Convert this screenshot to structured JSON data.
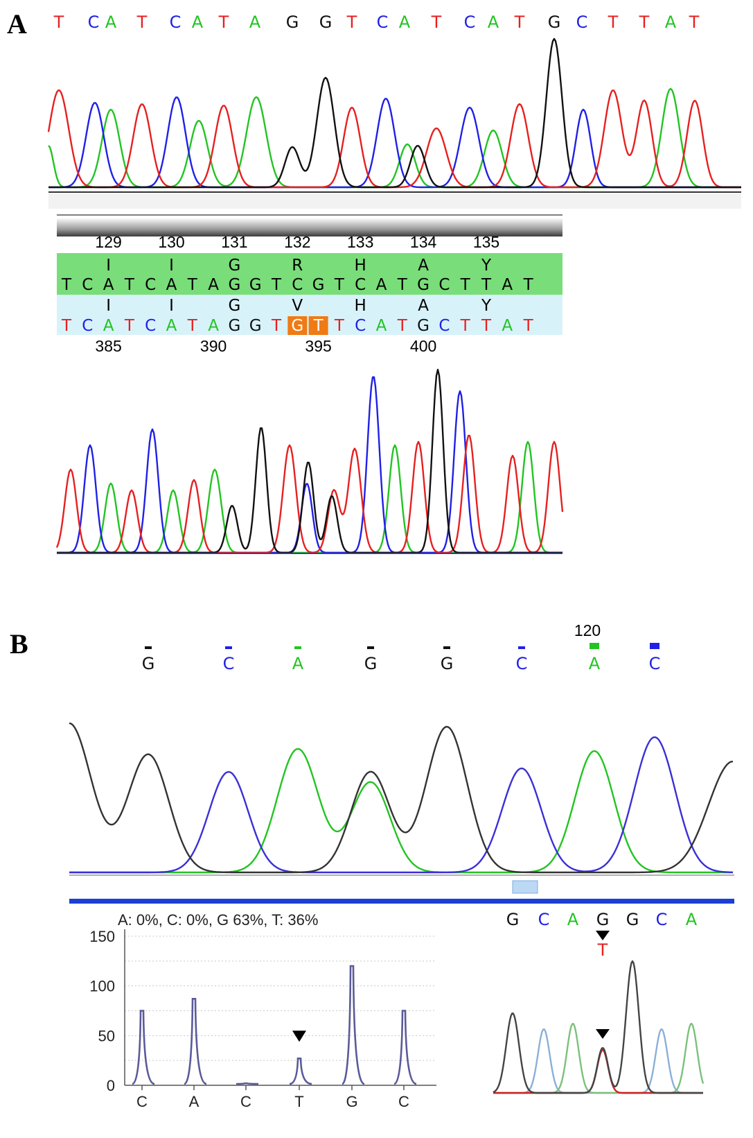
{
  "colors": {
    "A": "#22c422",
    "C": "#2020e6",
    "G": "#111111",
    "T": "#e62020",
    "highlight": "#f07a14",
    "green_band": "#79dd79",
    "blue_band": "#d8f2fa"
  },
  "panelA": {
    "label": "A",
    "top_calls": [
      "T",
      "C",
      "A",
      "T",
      "C",
      "A",
      "T",
      "A",
      "G",
      "G",
      "T",
      "C",
      "A",
      "T",
      "C",
      "A",
      "T",
      "G",
      "C",
      "T",
      "T",
      "A",
      "T"
    ],
    "codon_numbers": [
      "129",
      "130",
      "131",
      "132",
      "133",
      "134",
      "135"
    ],
    "ref_aa": [
      "I",
      "I",
      "G",
      "R",
      "H",
      "A",
      "Y"
    ],
    "ref_seq": [
      "T",
      "C",
      "A",
      "T",
      "C",
      "A",
      "T",
      "A",
      "G",
      "G",
      "T",
      "C",
      "G",
      "T",
      "C",
      "A",
      "T",
      "G",
      "C",
      "T",
      "T",
      "A",
      "T"
    ],
    "sample_aa": [
      "I",
      "I",
      "G",
      "V",
      "H",
      "A",
      "Y"
    ],
    "sample_seq": [
      "T",
      "C",
      "A",
      "T",
      "C",
      "A",
      "T",
      "A",
      "G",
      "G",
      "T",
      "G",
      "T",
      "T",
      "C",
      "A",
      "T",
      "G",
      "C",
      "T",
      "T",
      "A",
      "T"
    ],
    "mutated_positions": [
      11,
      12
    ],
    "position_numbers": [
      "385",
      "390",
      "395",
      "400"
    ]
  },
  "panelB": {
    "label": "B",
    "top_calls": [
      "G",
      "C",
      "A",
      "G",
      "G",
      "C",
      "A",
      "C"
    ],
    "position_label": "120",
    "percent_text": "A: 0%, C: 0%, G 63%, T: 36%",
    "pyro": {
      "yticks": [
        "150",
        "100",
        "50",
        "0"
      ],
      "ylim": [
        0,
        150
      ],
      "dispensation": [
        "C",
        "A",
        "C",
        "T",
        "G",
        "C"
      ],
      "values": [
        75,
        87,
        2,
        27,
        120,
        75
      ],
      "marker_at": "T"
    },
    "seq_calls": [
      "G",
      "C",
      "A",
      "G",
      "G",
      "C",
      "A"
    ],
    "variant_call": "T"
  }
}
